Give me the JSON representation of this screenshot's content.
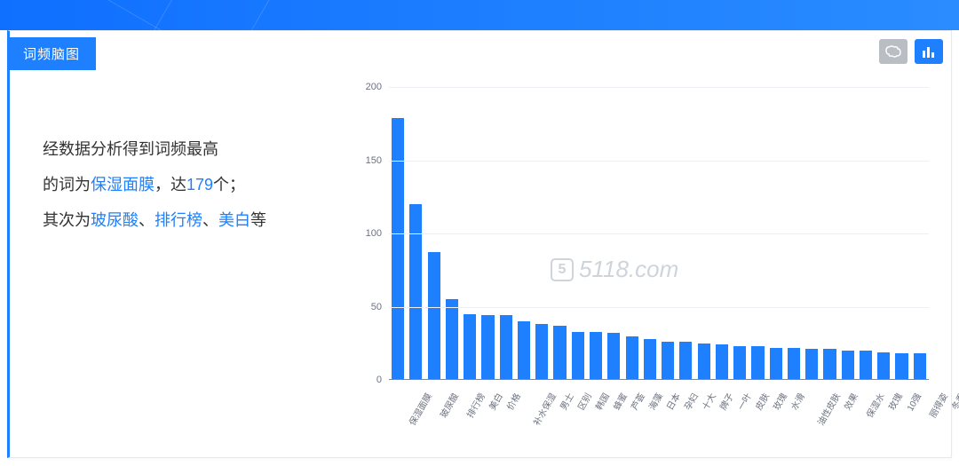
{
  "header": {
    "tab_label": "词频脑图",
    "accent_color": "#1e80ff",
    "stripe_gradient_from": "#0f6fff",
    "stripe_gradient_to": "#2a8cff"
  },
  "toolbar": {
    "brain_btn": {
      "name": "brain-view-icon",
      "bg": "#b9bec4"
    },
    "bar_btn": {
      "name": "bar-chart-icon",
      "bg": "#1e80ff"
    }
  },
  "summary": {
    "line1_a": "经数据分析得到词频最高",
    "line2_a": "的词为",
    "top_word": "保湿面膜",
    "line2_b": "，达",
    "top_count": "179",
    "line2_c": "个；",
    "line3_a": "其次为",
    "kw2": "玻尿酸",
    "sep1": "、",
    "kw3": "排行榜",
    "sep2": "、",
    "kw4": "美白",
    "line3_b": "等",
    "text_color": "#333333",
    "highlight_color": "#1e80ff",
    "fontsize": 18,
    "line_height": 40
  },
  "watermark": {
    "text": "5118.com",
    "color": "#cfd4da",
    "fontsize": 26
  },
  "chart": {
    "type": "bar",
    "bar_color": "#1e80ff",
    "background_color": "#ffffff",
    "grid_color": "#eceff3",
    "axis_color": "#7d8895",
    "label_color": "#6b7280",
    "label_fontsize": 11,
    "xlabel_fontsize": 10,
    "xlabel_rotation_deg": -60,
    "bar_width_ratio": 0.7,
    "ylim": [
      0,
      200
    ],
    "ytick_step": 50,
    "yticks": [
      0,
      50,
      100,
      150,
      200
    ],
    "categories": [
      "保湿面膜",
      "玻尿酸",
      "排行榜",
      "美白",
      "价格",
      "补水保湿",
      "男士",
      "区别",
      "韩国",
      "蜂蜜",
      "芦荟",
      "海藻",
      "日本",
      "孕妇",
      "十大",
      "牌子",
      "一叶",
      "皮肤",
      "玫瑰",
      "水滑",
      "油性皮肤",
      "效果",
      "保湿水",
      "玫瑰",
      "10强",
      "丽得姿",
      "冬季",
      "效果好",
      "血橙",
      "韩束"
    ],
    "values": [
      179,
      120,
      87,
      55,
      45,
      44,
      44,
      40,
      38,
      37,
      33,
      33,
      32,
      30,
      28,
      26,
      26,
      25,
      24,
      23,
      23,
      22,
      22,
      21,
      21,
      20,
      20,
      19,
      18,
      18
    ]
  }
}
